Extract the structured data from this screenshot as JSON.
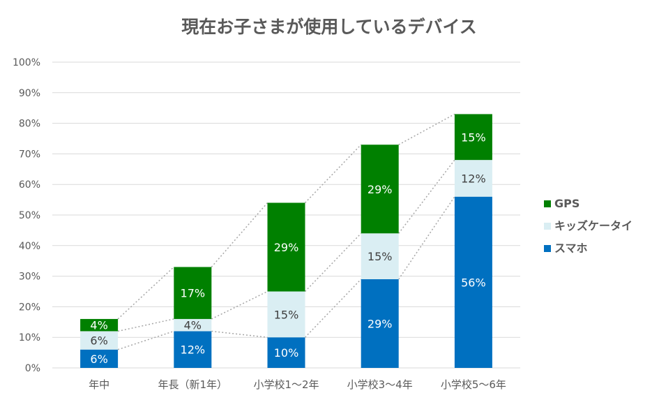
{
  "chart_data": {
    "type": "bar",
    "stacked": true,
    "title": "現在お子さまが使用しているデバイス",
    "categories": [
      "年中",
      "年長（新1年）",
      "小学校1～2年",
      "小学校3～4年",
      "小学校5～6年"
    ],
    "series": [
      {
        "name": "スマホ",
        "color": "#0070C0",
        "values": [
          6,
          12,
          10,
          29,
          56
        ],
        "labels": [
          "6%",
          "12%",
          "10%",
          "29%",
          "56%"
        ]
      },
      {
        "name": "キッズケータイ",
        "color": "#DAEEF3",
        "values": [
          6,
          4,
          15,
          15,
          12
        ],
        "labels": [
          "6%",
          "4%",
          "15%",
          "15%",
          "12%"
        ]
      },
      {
        "name": "GPS",
        "color": "#008000",
        "values": [
          4,
          17,
          29,
          29,
          15
        ],
        "labels": [
          "4%",
          "17%",
          "29%",
          "29%",
          "15%"
        ]
      }
    ],
    "ylim": [
      0,
      100
    ],
    "yticks": [
      "0%",
      "10%",
      "20%",
      "30%",
      "40%",
      "50%",
      "60%",
      "70%",
      "80%",
      "90%",
      "100%"
    ],
    "grid": true,
    "series_lines": true,
    "legend_position": "right",
    "legend_order": [
      "GPS",
      "キッズケータイ",
      "スマホ"
    ]
  }
}
